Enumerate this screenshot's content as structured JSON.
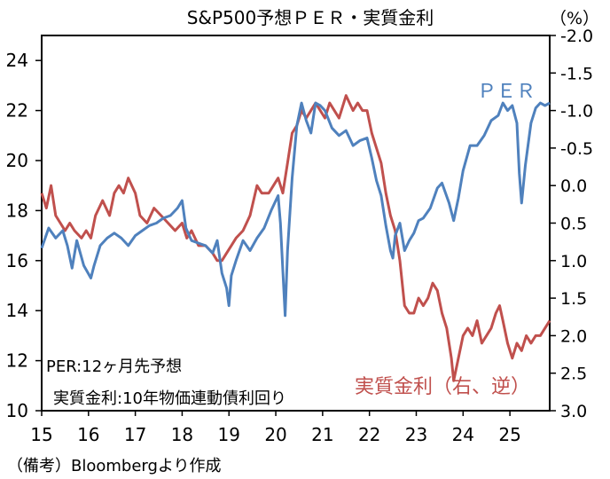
{
  "chart_data": {
    "type": "line",
    "title": "S&P500予想ＰＥＲ・実質金利",
    "right_unit": "（%）",
    "source": "（備考）Bloombergより作成",
    "x_ticks": [
      "15",
      "16",
      "17",
      "18",
      "19",
      "20",
      "21",
      "22",
      "23",
      "24",
      "25"
    ],
    "x_range": [
      2015.0,
      2025.85
    ],
    "y_left": {
      "ticks": [
        "24",
        "22",
        "20",
        "18",
        "16",
        "14",
        "12",
        "10"
      ],
      "ylim": [
        10,
        25
      ]
    },
    "y_right": {
      "ticks": [
        "-2.0",
        "-1.5",
        "-1.0",
        "-0.5",
        "0.0",
        "0.5",
        "1.0",
        "1.5",
        "2.0",
        "2.5",
        "3.0"
      ],
      "ylim": [
        -2.0,
        3.0
      ],
      "inverted": true
    },
    "legend_notes": [
      "PER:12ヶ月先予想",
      "実質金利:10年物価連動債利回り"
    ],
    "colors": {
      "per": "#4f81bd",
      "real_rate": "#c0504d",
      "axis": "#000000"
    },
    "series": [
      {
        "name": "ＰＥＲ",
        "axis": "left",
        "label": "ＰＥＲ",
        "points": [
          [
            2015.0,
            16.5
          ],
          [
            2015.15,
            17.3
          ],
          [
            2015.3,
            16.9
          ],
          [
            2015.45,
            17.2
          ],
          [
            2015.55,
            16.6
          ],
          [
            2015.65,
            15.7
          ],
          [
            2015.75,
            16.8
          ],
          [
            2015.9,
            15.8
          ],
          [
            2016.05,
            15.3
          ],
          [
            2016.12,
            15.8
          ],
          [
            2016.25,
            16.6
          ],
          [
            2016.4,
            16.9
          ],
          [
            2016.55,
            17.1
          ],
          [
            2016.7,
            16.9
          ],
          [
            2016.85,
            16.6
          ],
          [
            2017.0,
            17.0
          ],
          [
            2017.15,
            17.2
          ],
          [
            2017.3,
            17.4
          ],
          [
            2017.45,
            17.5
          ],
          [
            2017.6,
            17.7
          ],
          [
            2017.75,
            17.8
          ],
          [
            2017.9,
            18.1
          ],
          [
            2018.0,
            18.4
          ],
          [
            2018.08,
            17.3
          ],
          [
            2018.2,
            16.8
          ],
          [
            2018.35,
            16.7
          ],
          [
            2018.5,
            16.6
          ],
          [
            2018.65,
            16.3
          ],
          [
            2018.75,
            16.8
          ],
          [
            2018.85,
            15.5
          ],
          [
            2018.95,
            14.9
          ],
          [
            2019.0,
            14.2
          ],
          [
            2019.05,
            15.4
          ],
          [
            2019.15,
            16.0
          ],
          [
            2019.3,
            16.8
          ],
          [
            2019.45,
            16.4
          ],
          [
            2019.6,
            16.9
          ],
          [
            2019.75,
            17.3
          ],
          [
            2019.9,
            18.0
          ],
          [
            2020.05,
            18.6
          ],
          [
            2020.1,
            17.5
          ],
          [
            2020.15,
            15.6
          ],
          [
            2020.2,
            13.8
          ],
          [
            2020.25,
            16.4
          ],
          [
            2020.35,
            19.3
          ],
          [
            2020.45,
            21.4
          ],
          [
            2020.55,
            22.3
          ],
          [
            2020.65,
            21.6
          ],
          [
            2020.75,
            21.1
          ],
          [
            2020.85,
            22.3
          ],
          [
            2020.95,
            22.2
          ],
          [
            2021.05,
            22.0
          ],
          [
            2021.2,
            21.3
          ],
          [
            2021.35,
            21.0
          ],
          [
            2021.5,
            21.2
          ],
          [
            2021.65,
            20.6
          ],
          [
            2021.8,
            20.8
          ],
          [
            2021.95,
            20.9
          ],
          [
            2022.05,
            20.1
          ],
          [
            2022.15,
            19.2
          ],
          [
            2022.25,
            18.6
          ],
          [
            2022.35,
            17.4
          ],
          [
            2022.45,
            16.4
          ],
          [
            2022.5,
            16.1
          ],
          [
            2022.55,
            17.0
          ],
          [
            2022.65,
            17.5
          ],
          [
            2022.75,
            16.4
          ],
          [
            2022.85,
            16.8
          ],
          [
            2022.95,
            17.1
          ],
          [
            2023.05,
            17.6
          ],
          [
            2023.15,
            17.7
          ],
          [
            2023.3,
            18.1
          ],
          [
            2023.45,
            18.9
          ],
          [
            2023.55,
            19.1
          ],
          [
            2023.7,
            18.3
          ],
          [
            2023.8,
            17.6
          ],
          [
            2023.9,
            18.5
          ],
          [
            2024.0,
            19.6
          ],
          [
            2024.15,
            20.6
          ],
          [
            2024.3,
            20.6
          ],
          [
            2024.45,
            21.0
          ],
          [
            2024.6,
            21.6
          ],
          [
            2024.75,
            21.8
          ],
          [
            2024.85,
            22.3
          ],
          [
            2024.95,
            22.0
          ],
          [
            2025.05,
            22.2
          ],
          [
            2025.15,
            21.5
          ],
          [
            2025.2,
            19.5
          ],
          [
            2025.25,
            18.3
          ],
          [
            2025.33,
            19.8
          ],
          [
            2025.45,
            21.5
          ],
          [
            2025.55,
            22.1
          ],
          [
            2025.65,
            22.3
          ],
          [
            2025.75,
            22.2
          ],
          [
            2025.85,
            22.3
          ]
        ]
      },
      {
        "name": "実質金利（右、逆）",
        "axis": "right",
        "label": "実質金利（右、逆）",
        "points": [
          [
            2015.0,
            0.1
          ],
          [
            2015.1,
            0.3
          ],
          [
            2015.2,
            0.0
          ],
          [
            2015.3,
            0.4
          ],
          [
            2015.4,
            0.5
          ],
          [
            2015.5,
            0.6
          ],
          [
            2015.6,
            0.5
          ],
          [
            2015.7,
            0.6
          ],
          [
            2015.85,
            0.7
          ],
          [
            2015.95,
            0.6
          ],
          [
            2016.05,
            0.7
          ],
          [
            2016.15,
            0.4
          ],
          [
            2016.3,
            0.2
          ],
          [
            2016.45,
            0.4
          ],
          [
            2016.55,
            0.1
          ],
          [
            2016.65,
            0.0
          ],
          [
            2016.75,
            0.1
          ],
          [
            2016.85,
            -0.1
          ],
          [
            2017.0,
            0.1
          ],
          [
            2017.1,
            0.4
          ],
          [
            2017.25,
            0.5
          ],
          [
            2017.4,
            0.3
          ],
          [
            2017.55,
            0.4
          ],
          [
            2017.7,
            0.5
          ],
          [
            2017.85,
            0.6
          ],
          [
            2018.0,
            0.5
          ],
          [
            2018.1,
            0.7
          ],
          [
            2018.2,
            0.6
          ],
          [
            2018.35,
            0.8
          ],
          [
            2018.5,
            0.8
          ],
          [
            2018.65,
            0.9
          ],
          [
            2018.75,
            1.0
          ],
          [
            2018.85,
            1.0
          ],
          [
            2018.95,
            0.9
          ],
          [
            2019.05,
            0.8
          ],
          [
            2019.15,
            0.7
          ],
          [
            2019.3,
            0.6
          ],
          [
            2019.45,
            0.4
          ],
          [
            2019.6,
            0.0
          ],
          [
            2019.7,
            0.1
          ],
          [
            2019.85,
            0.1
          ],
          [
            2019.95,
            0.0
          ],
          [
            2020.05,
            -0.1
          ],
          [
            2020.15,
            0.1
          ],
          [
            2020.25,
            -0.3
          ],
          [
            2020.35,
            -0.7
          ],
          [
            2020.45,
            -0.8
          ],
          [
            2020.55,
            -1.0
          ],
          [
            2020.65,
            -0.9
          ],
          [
            2020.75,
            -1.0
          ],
          [
            2020.85,
            -1.1
          ],
          [
            2020.95,
            -1.0
          ],
          [
            2021.05,
            -0.9
          ],
          [
            2021.15,
            -1.1
          ],
          [
            2021.25,
            -1.0
          ],
          [
            2021.35,
            -0.9
          ],
          [
            2021.5,
            -1.2
          ],
          [
            2021.65,
            -1.0
          ],
          [
            2021.75,
            -1.1
          ],
          [
            2021.85,
            -1.0
          ],
          [
            2021.95,
            -1.0
          ],
          [
            2022.05,
            -0.7
          ],
          [
            2022.15,
            -0.5
          ],
          [
            2022.25,
            -0.3
          ],
          [
            2022.35,
            0.1
          ],
          [
            2022.45,
            0.4
          ],
          [
            2022.55,
            0.6
          ],
          [
            2022.65,
            1.0
          ],
          [
            2022.75,
            1.6
          ],
          [
            2022.85,
            1.7
          ],
          [
            2022.95,
            1.7
          ],
          [
            2023.05,
            1.5
          ],
          [
            2023.15,
            1.6
          ],
          [
            2023.25,
            1.5
          ],
          [
            2023.35,
            1.3
          ],
          [
            2023.45,
            1.4
          ],
          [
            2023.55,
            1.7
          ],
          [
            2023.65,
            1.9
          ],
          [
            2023.75,
            2.3
          ],
          [
            2023.8,
            2.6
          ],
          [
            2023.9,
            2.3
          ],
          [
            2024.0,
            2.0
          ],
          [
            2024.1,
            1.9
          ],
          [
            2024.2,
            2.0
          ],
          [
            2024.3,
            1.8
          ],
          [
            2024.4,
            2.1
          ],
          [
            2024.5,
            2.0
          ],
          [
            2024.6,
            1.9
          ],
          [
            2024.7,
            1.7
          ],
          [
            2024.78,
            1.6
          ],
          [
            2024.85,
            1.8
          ],
          [
            2024.95,
            2.1
          ],
          [
            2025.05,
            2.3
          ],
          [
            2025.15,
            2.1
          ],
          [
            2025.25,
            2.2
          ],
          [
            2025.35,
            2.0
          ],
          [
            2025.45,
            2.1
          ],
          [
            2025.55,
            2.0
          ],
          [
            2025.65,
            2.0
          ],
          [
            2025.75,
            1.9
          ],
          [
            2025.85,
            1.8
          ]
        ]
      }
    ]
  }
}
